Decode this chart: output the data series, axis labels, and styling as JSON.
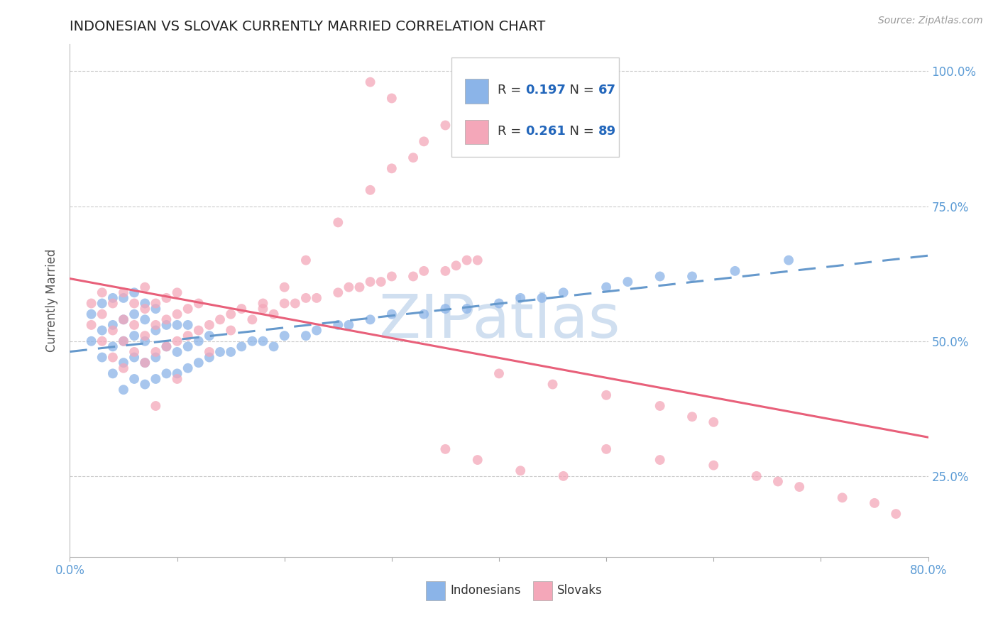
{
  "title": "INDONESIAN VS SLOVAK CURRENTLY MARRIED CORRELATION CHART",
  "source": "Source: ZipAtlas.com",
  "ylabel": "Currently Married",
  "xlim": [
    0.0,
    0.8
  ],
  "ylim": [
    0.1,
    1.05
  ],
  "y_ticks": [
    0.25,
    0.5,
    0.75,
    1.0
  ],
  "y_tick_labels": [
    "25.0%",
    "50.0%",
    "75.0%",
    "100.0%"
  ],
  "indonesian_color": "#8bb4e8",
  "slovak_color": "#f4a7b9",
  "indonesian_line_color": "#6699cc",
  "slovak_line_color": "#e8607a",
  "r_indonesian": 0.197,
  "n_indonesian": 67,
  "r_slovak": 0.261,
  "n_slovak": 89,
  "background_color": "#ffffff",
  "watermark_text": "ZIPatlas",
  "watermark_color": "#d0dff0",
  "indo_x": [
    0.02,
    0.02,
    0.03,
    0.03,
    0.03,
    0.04,
    0.04,
    0.04,
    0.04,
    0.05,
    0.05,
    0.05,
    0.05,
    0.05,
    0.06,
    0.06,
    0.06,
    0.06,
    0.06,
    0.07,
    0.07,
    0.07,
    0.07,
    0.07,
    0.08,
    0.08,
    0.08,
    0.08,
    0.09,
    0.09,
    0.09,
    0.1,
    0.1,
    0.1,
    0.11,
    0.11,
    0.11,
    0.12,
    0.12,
    0.13,
    0.13,
    0.14,
    0.15,
    0.16,
    0.17,
    0.18,
    0.19,
    0.2,
    0.22,
    0.23,
    0.25,
    0.26,
    0.28,
    0.3,
    0.33,
    0.35,
    0.37,
    0.4,
    0.42,
    0.44,
    0.46,
    0.5,
    0.52,
    0.55,
    0.58,
    0.62,
    0.67
  ],
  "indo_y": [
    0.5,
    0.55,
    0.47,
    0.52,
    0.57,
    0.44,
    0.49,
    0.53,
    0.58,
    0.41,
    0.46,
    0.5,
    0.54,
    0.58,
    0.43,
    0.47,
    0.51,
    0.55,
    0.59,
    0.42,
    0.46,
    0.5,
    0.54,
    0.57,
    0.43,
    0.47,
    0.52,
    0.56,
    0.44,
    0.49,
    0.53,
    0.44,
    0.48,
    0.53,
    0.45,
    0.49,
    0.53,
    0.46,
    0.5,
    0.47,
    0.51,
    0.48,
    0.48,
    0.49,
    0.5,
    0.5,
    0.49,
    0.51,
    0.51,
    0.52,
    0.53,
    0.53,
    0.54,
    0.55,
    0.55,
    0.56,
    0.56,
    0.57,
    0.58,
    0.58,
    0.59,
    0.6,
    0.61,
    0.62,
    0.62,
    0.63,
    0.65
  ],
  "slov_x": [
    0.02,
    0.02,
    0.03,
    0.03,
    0.03,
    0.04,
    0.04,
    0.04,
    0.05,
    0.05,
    0.05,
    0.05,
    0.06,
    0.06,
    0.06,
    0.07,
    0.07,
    0.07,
    0.07,
    0.08,
    0.08,
    0.08,
    0.09,
    0.09,
    0.09,
    0.1,
    0.1,
    0.1,
    0.11,
    0.11,
    0.12,
    0.12,
    0.13,
    0.14,
    0.15,
    0.16,
    0.17,
    0.18,
    0.19,
    0.2,
    0.21,
    0.22,
    0.23,
    0.25,
    0.26,
    0.27,
    0.28,
    0.29,
    0.3,
    0.32,
    0.33,
    0.35,
    0.36,
    0.37,
    0.38,
    0.3,
    0.32,
    0.28,
    0.25,
    0.22,
    0.2,
    0.18,
    0.15,
    0.13,
    0.1,
    0.08,
    0.33,
    0.35,
    0.3,
    0.28,
    0.4,
    0.45,
    0.5,
    0.55,
    0.58,
    0.6,
    0.35,
    0.38,
    0.42,
    0.46,
    0.5,
    0.55,
    0.6,
    0.64,
    0.66,
    0.68,
    0.72,
    0.75,
    0.77
  ],
  "slov_y": [
    0.53,
    0.57,
    0.5,
    0.55,
    0.59,
    0.47,
    0.52,
    0.57,
    0.45,
    0.5,
    0.54,
    0.59,
    0.48,
    0.53,
    0.57,
    0.46,
    0.51,
    0.56,
    0.6,
    0.48,
    0.53,
    0.57,
    0.49,
    0.54,
    0.58,
    0.5,
    0.55,
    0.59,
    0.51,
    0.56,
    0.52,
    0.57,
    0.53,
    0.54,
    0.55,
    0.56,
    0.54,
    0.56,
    0.55,
    0.57,
    0.57,
    0.58,
    0.58,
    0.59,
    0.6,
    0.6,
    0.61,
    0.61,
    0.62,
    0.62,
    0.63,
    0.63,
    0.64,
    0.65,
    0.65,
    0.82,
    0.84,
    0.78,
    0.72,
    0.65,
    0.6,
    0.57,
    0.52,
    0.48,
    0.43,
    0.38,
    0.87,
    0.9,
    0.95,
    0.98,
    0.44,
    0.42,
    0.4,
    0.38,
    0.36,
    0.35,
    0.3,
    0.28,
    0.26,
    0.25,
    0.3,
    0.28,
    0.27,
    0.25,
    0.24,
    0.23,
    0.21,
    0.2,
    0.18
  ]
}
